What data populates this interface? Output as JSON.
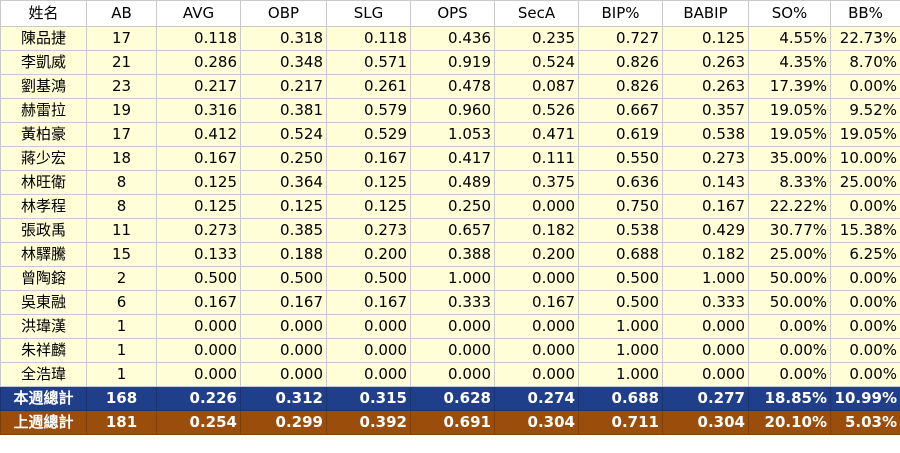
{
  "headers": [
    "姓名",
    "AB",
    "AVG",
    "OBP",
    "SLG",
    "OPS",
    "SecA",
    "BIP%",
    "BABIP",
    "SO%",
    "BB%"
  ],
  "rows": [
    [
      "陳品捷",
      "17",
      "0.118",
      "0.318",
      "0.118",
      "0.436",
      "0.235",
      "0.727",
      "0.125",
      "4.55%",
      "22.73%"
    ],
    [
      "李凱威",
      "21",
      "0.286",
      "0.348",
      "0.571",
      "0.919",
      "0.524",
      "0.826",
      "0.263",
      "4.35%",
      "8.70%"
    ],
    [
      "劉基鴻",
      "23",
      "0.217",
      "0.217",
      "0.261",
      "0.478",
      "0.087",
      "0.826",
      "0.263",
      "17.39%",
      "0.00%"
    ],
    [
      "赫雷拉",
      "19",
      "0.316",
      "0.381",
      "0.579",
      "0.960",
      "0.526",
      "0.667",
      "0.357",
      "19.05%",
      "9.52%"
    ],
    [
      "黃柏豪",
      "17",
      "0.412",
      "0.524",
      "0.529",
      "1.053",
      "0.471",
      "0.619",
      "0.538",
      "19.05%",
      "19.05%"
    ],
    [
      "蔣少宏",
      "18",
      "0.167",
      "0.250",
      "0.167",
      "0.417",
      "0.111",
      "0.550",
      "0.273",
      "35.00%",
      "10.00%"
    ],
    [
      "林旺衛",
      "8",
      "0.125",
      "0.364",
      "0.125",
      "0.489",
      "0.375",
      "0.636",
      "0.143",
      "8.33%",
      "25.00%"
    ],
    [
      "林孝程",
      "8",
      "0.125",
      "0.125",
      "0.125",
      "0.250",
      "0.000",
      "0.750",
      "0.167",
      "22.22%",
      "0.00%"
    ],
    [
      "張政禹",
      "11",
      "0.273",
      "0.385",
      "0.273",
      "0.657",
      "0.182",
      "0.538",
      "0.429",
      "30.77%",
      "15.38%"
    ],
    [
      "林驛騰",
      "15",
      "0.133",
      "0.188",
      "0.200",
      "0.388",
      "0.200",
      "0.688",
      "0.182",
      "25.00%",
      "6.25%"
    ],
    [
      "曾陶鎔",
      "2",
      "0.500",
      "0.500",
      "0.500",
      "1.000",
      "0.000",
      "0.500",
      "1.000",
      "50.00%",
      "0.00%"
    ],
    [
      "吳東融",
      "6",
      "0.167",
      "0.167",
      "0.167",
      "0.333",
      "0.167",
      "0.500",
      "0.333",
      "50.00%",
      "0.00%"
    ],
    [
      "洪瑋漢",
      "1",
      "0.000",
      "0.000",
      "0.000",
      "0.000",
      "0.000",
      "1.000",
      "0.000",
      "0.00%",
      "0.00%"
    ],
    [
      "朱祥麟",
      "1",
      "0.000",
      "0.000",
      "0.000",
      "0.000",
      "0.000",
      "1.000",
      "0.000",
      "0.00%",
      "0.00%"
    ],
    [
      "全浩瑋",
      "1",
      "0.000",
      "0.000",
      "0.000",
      "0.000",
      "0.000",
      "1.000",
      "0.000",
      "0.00%",
      "0.00%"
    ]
  ],
  "totals": {
    "this_week": [
      "本週總計",
      "168",
      "0.226",
      "0.312",
      "0.315",
      "0.628",
      "0.274",
      "0.688",
      "0.277",
      "18.85%",
      "10.99%"
    ],
    "last_week": [
      "上週總計",
      "181",
      "0.254",
      "0.299",
      "0.392",
      "0.691",
      "0.304",
      "0.711",
      "0.304",
      "20.10%",
      "5.03%"
    ]
  },
  "colors": {
    "row_background": "#fffed6",
    "this_week_background": "#1f3f8a",
    "last_week_background": "#9b4e0b"
  }
}
